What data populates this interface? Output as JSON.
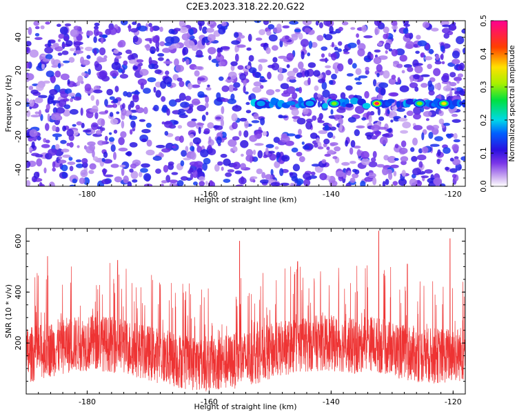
{
  "chart_data": [
    {
      "type": "heatmap",
      "title": "C2E3.2023.318.22.20.G22",
      "xlabel": "Height of straight line (km)",
      "ylabel": "Frequency (Hz)",
      "xlim": [
        -190,
        -118
      ],
      "ylim": [
        -50,
        50
      ],
      "xticks": [
        -180,
        -160,
        -140,
        -120
      ],
      "yticks": [
        -40,
        -20,
        0,
        20,
        40
      ],
      "colorbar": {
        "label": "Normalized spectral amplitude",
        "range": [
          0.0,
          0.5
        ],
        "ticks": [
          0.0,
          0.1,
          0.2,
          0.3,
          0.4,
          0.5
        ]
      },
      "features": [
        {
          "description": "signal band near 0 Hz",
          "x_range": [
            -153,
            -118
          ],
          "y": 0,
          "peak_x": -132.5,
          "peak_value": 0.5
        },
        {
          "description": "secondary peaks",
          "points": [
            [
              -139.5,
              0.35
            ],
            [
              -125.5,
              0.3
            ],
            [
              -121.5,
              0.38
            ],
            [
              -151.5,
              0.22
            ],
            [
              -143.5,
              0.2
            ]
          ]
        }
      ],
      "grid": false
    },
    {
      "type": "line",
      "xlabel": "Height of straight line (km)",
      "ylabel": "SNR (10 * v/v)",
      "xlim": [
        -190,
        -118
      ],
      "ylim": [
        0,
        650
      ],
      "xticks": [
        -180,
        -160,
        -140,
        -120
      ],
      "yticks": [
        200,
        400,
        600
      ],
      "series_color": "#ee3333",
      "baseline_mean": 160,
      "notable_peaks": [
        [
          -186.5,
          540
        ],
        [
          -175,
          525
        ],
        [
          -155,
          600
        ],
        [
          -132.2,
          640
        ],
        [
          -120.5,
          610
        ],
        [
          -145.5,
          520
        ],
        [
          -127.5,
          510
        ]
      ],
      "grid": false
    }
  ]
}
